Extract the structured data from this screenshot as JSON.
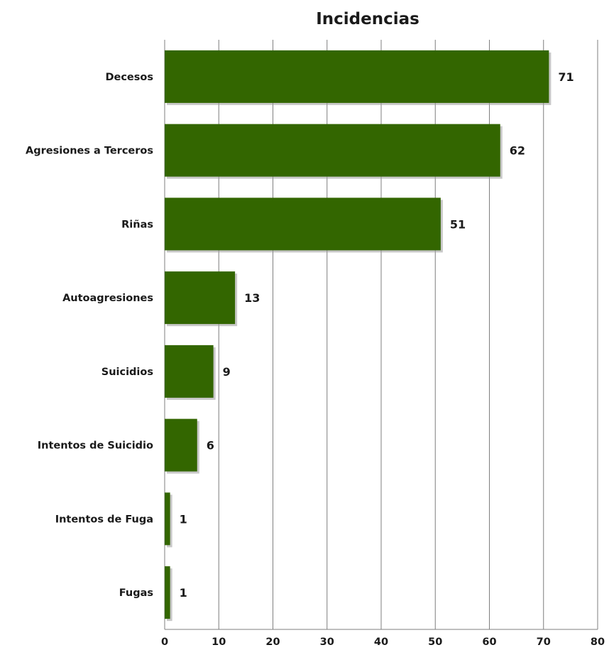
{
  "chart_data": {
    "type": "bar",
    "orientation": "horizontal",
    "title": "Incidencias",
    "xlabel": "",
    "ylabel": "",
    "categories": [
      "Decesos",
      "Agresiones a Terceros",
      "Riñas",
      "Autoagresiones",
      "Suicidios",
      "Intentos de Suicidio",
      "Intentos de Fuga",
      "Fugas"
    ],
    "values": [
      71,
      62,
      51,
      13,
      9,
      6,
      1,
      1
    ],
    "xlim": [
      0,
      80
    ],
    "xticks": [
      0,
      10,
      20,
      30,
      40,
      50,
      60,
      70,
      80
    ],
    "grid": true,
    "legend": "none",
    "data_labels": true
  },
  "colors": {
    "bar": "#336600",
    "bar_shadow": "#9a9a9a",
    "grid": "#7f7f7f",
    "text": "#1a1a1a"
  }
}
